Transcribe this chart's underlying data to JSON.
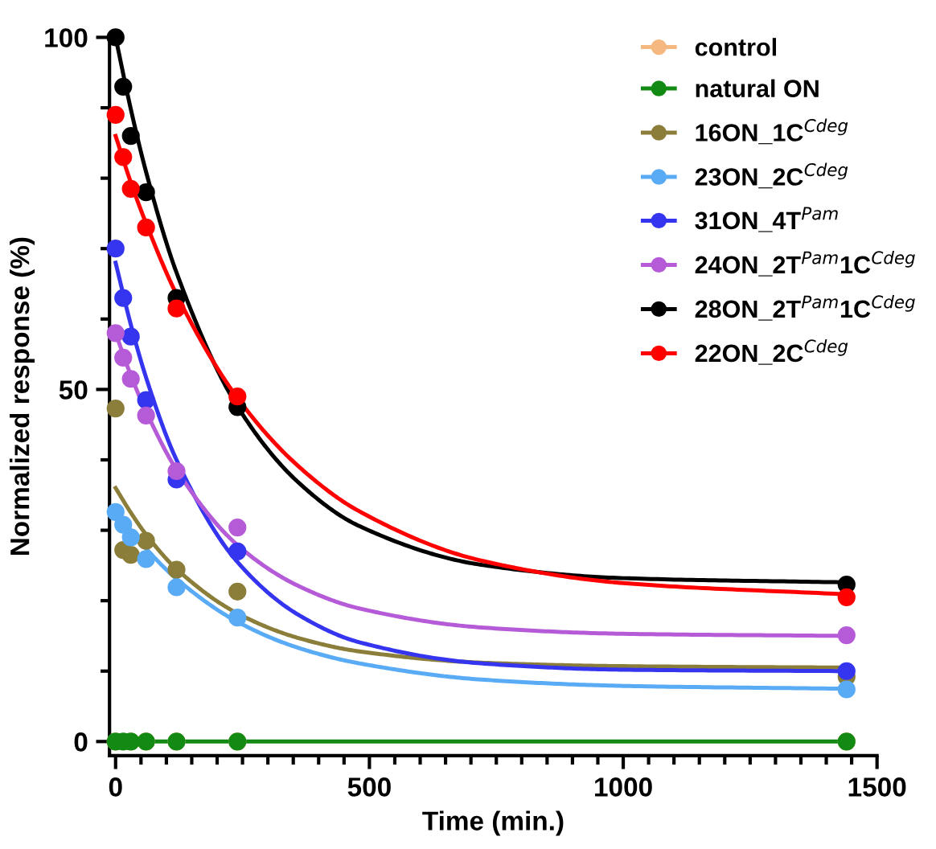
{
  "chart_data": {
    "type": "scatter",
    "xlabel": "Time (min.)",
    "ylabel": "Normalized response (%)",
    "xlim": [
      -12,
      1500
    ],
    "ylim": [
      -2,
      100
    ],
    "xticks": [
      0,
      500,
      1000,
      1500
    ],
    "yticks": [
      0,
      50,
      100
    ],
    "grid": false,
    "legend": "top right",
    "x": [
      0,
      15,
      30,
      60,
      120,
      240,
      1440
    ],
    "series": [
      {
        "name": "control",
        "color": "#f5b880",
        "marker": "circle",
        "values": [
          0,
          null,
          0,
          0,
          0,
          0,
          0
        ]
      },
      {
        "name": "natural ON",
        "color": "#138a13",
        "marker": "circle",
        "values": [
          0,
          0,
          0,
          0,
          0,
          0,
          0
        ]
      },
      {
        "name": "16ON_1C$^{Cdeg}$",
        "color": "#8b7d3a",
        "marker": "circle",
        "values": [
          47.3,
          27.2,
          26.5,
          28.5,
          24.4,
          21.3,
          9.2
        ]
      },
      {
        "name": "23ON_2C$^{Cdeg}$",
        "color": "#5aabf5",
        "marker": "circle",
        "values": [
          32.6,
          30.8,
          29,
          25.9,
          21.9,
          17.6,
          7.4
        ]
      },
      {
        "name": "31ON_4T$^{Pam}$",
        "color": "#3535f0",
        "marker": "circle",
        "values": [
          70,
          63,
          57.5,
          48.5,
          37.2,
          27,
          10
        ]
      },
      {
        "name": "24ON_2T$^{Pam}$1C$^{Cdeg}$",
        "color": "#b65bd8",
        "marker": "circle",
        "values": [
          58,
          54.5,
          51.5,
          46.3,
          38.4,
          30.4,
          15.1
        ]
      },
      {
        "name": "28ON_2T$^{Pam}$1C$^{Cdeg}$",
        "color": "#000000",
        "marker": "circle",
        "values": [
          100,
          93,
          86,
          78,
          63,
          47.5,
          22.3
        ]
      },
      {
        "name": "22ON_2C$^{Cdeg}$",
        "color": "#ff0000",
        "marker": "circle",
        "values": [
          89,
          83,
          78.5,
          73,
          61.5,
          49,
          20.5
        ]
      },
      {
        "type": "line",
        "color": "#138a13",
        "x": [
          0,
          1440
        ],
        "values": [
          0,
          0
        ]
      },
      {
        "type": "line",
        "color": "#8b7d3a",
        "x": [
          0,
          30,
          60,
          120,
          240,
          360,
          480,
          720,
          1000,
          1440
        ],
        "values": [
          36,
          32.5,
          29.4,
          24.5,
          18.2,
          14.7,
          12.8,
          11.2,
          10.7,
          10.5
        ]
      },
      {
        "type": "line",
        "color": "#5aabf5",
        "x": [
          0,
          30,
          60,
          120,
          240,
          360,
          480,
          720,
          1000,
          1440
        ],
        "values": [
          33,
          30,
          27.4,
          23.1,
          17,
          13.3,
          11.1,
          8.8,
          7.9,
          7.5
        ]
      },
      {
        "type": "line",
        "color": "#3535f0",
        "x": [
          0,
          30,
          60,
          120,
          240,
          360,
          480,
          720,
          1000,
          1440
        ],
        "values": [
          68,
          59.2,
          51.7,
          40,
          25.5,
          18,
          14.1,
          11.1,
          10.2,
          10
        ]
      },
      {
        "type": "line",
        "color": "#b65bd8",
        "x": [
          0,
          30,
          60,
          120,
          240,
          360,
          480,
          720,
          1000,
          1440
        ],
        "values": [
          58,
          52,
          46.9,
          38.6,
          27.9,
          22.1,
          18.9,
          16.2,
          15.3,
          15
        ]
      },
      {
        "type": "line",
        "color": "#000000",
        "x": [
          0,
          30,
          60,
          120,
          240,
          360,
          480,
          720,
          1000,
          1440
        ],
        "values": [
          100,
          89.8,
          80.9,
          66.6,
          47.6,
          36.8,
          30.6,
          25.1,
          23.2,
          22.6
        ]
      },
      {
        "type": "line",
        "color": "#ff0000",
        "x": [
          0,
          30,
          60,
          120,
          240,
          360,
          480,
          720,
          1000,
          1440
        ],
        "values": [
          86,
          79.4,
          73.6,
          63.5,
          48.8,
          39.1,
          32.7,
          25.7,
          22.5,
          20.9
        ]
      }
    ]
  }
}
